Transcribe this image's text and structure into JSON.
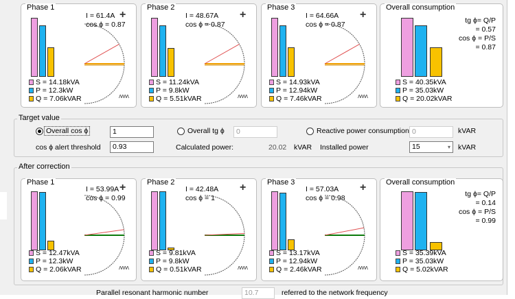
{
  "before": {
    "panels": [
      {
        "title": "Phase 1",
        "current": "I = 61.4A",
        "cos": "cos ϕ = 0.87",
        "s": "S = 14.18kVA",
        "p": "P = 12.3kW",
        "q": "Q = 7.06kVAR",
        "S": 14.18,
        "P": 12.3,
        "Q": 7.06,
        "angle_deg": 29.5
      },
      {
        "title": "Phase 2",
        "current": "I = 48.67A",
        "cos": "cos ϕ = 0.87",
        "s": "S = 11.24kVA",
        "p": "P = 9.8kW",
        "q": "Q = 5.51kVAR",
        "S": 11.24,
        "P": 9.8,
        "Q": 5.51,
        "angle_deg": 29.5
      },
      {
        "title": "Phase 3",
        "current": "I = 64.66A",
        "cos": "cos ϕ = 0.87",
        "s": "S = 14.93kVA",
        "p": "P = 12.94kW",
        "q": "Q = 7.46kVAR",
        "S": 14.93,
        "P": 12.94,
        "Q": 7.46,
        "angle_deg": 29.5
      }
    ],
    "overall": {
      "title": "Overall consumption",
      "tg_formula": "tg ϕ= Q/P",
      "tg_value": "= 0.57",
      "cos_formula": "cos ϕ = P/S",
      "cos_value": "= 0.87",
      "s": "S = 40.35kVA",
      "p": "P = 35.03kW",
      "q": "Q = 20.02kVAR",
      "S": 40.35,
      "P": 35.03,
      "Q": 20.02
    }
  },
  "target": {
    "title": "Target value",
    "overall_cos_label": "Overall cos ϕ",
    "overall_cos_value": "1",
    "overall_tg_label": "Overall tg ϕ",
    "overall_tg_value": "0",
    "reactive_label": "Reactive power consumption",
    "reactive_value": "0",
    "reactive_unit": "kVAR",
    "alert_label": "cos ϕ alert threshold",
    "alert_value": "0.93",
    "calc_label": "Calculated power:",
    "calc_value": "20.02",
    "calc_unit": "kVAR",
    "installed_label": "Installed power",
    "installed_value": "15",
    "installed_unit": "kVAR"
  },
  "after": {
    "title": "After correction",
    "panels": [
      {
        "title": "Phase 1",
        "current": "I = 53.99A",
        "cos": "cos ϕ = 0.99",
        "s": "S = 12.47kVA",
        "p": "P = 12.3kW",
        "q": "Q = 2.06kVAR",
        "S": 12.47,
        "P": 12.3,
        "Q": 2.06,
        "angle_deg": 8.1
      },
      {
        "title": "Phase 2",
        "current": "I = 42.48A",
        "cos": "cos ϕ = 1",
        "s": "S = 9.81kVA",
        "p": "P = 9.8kW",
        "q": "Q = 0.51kVAR",
        "S": 9.81,
        "P": 9.8,
        "Q": 0.51,
        "angle_deg": 2.6
      },
      {
        "title": "Phase 3",
        "current": "I = 57.03A",
        "cos": "cos ϕ = 0.98",
        "s": "S = 13.17kVA",
        "p": "P = 12.94kW",
        "q": "Q = 2.46kVAR",
        "S": 13.17,
        "P": 12.94,
        "Q": 2.46,
        "angle_deg": 10.8
      }
    ],
    "overall": {
      "title": "Overall consumption",
      "tg_formula": "tg ϕ= Q/P",
      "tg_value": "= 0.14",
      "cos_formula": "cos ϕ = P/S",
      "cos_value": "= 0.99",
      "s": "S = 35.39kVA",
      "p": "P = 35.03kW",
      "q": "Q = 5.02kVAR",
      "S": 35.39,
      "P": 35.03,
      "Q": 5.02
    }
  },
  "footer": {
    "harmonic_label": "Parallel resonant harmonic number",
    "harmonic_value": "10.7",
    "referred_label": "referred to the network frequency"
  },
  "icons": {
    "plus": "plus-icon",
    "coil": "coil-icon"
  },
  "colors": {
    "S": "#ee9fe0",
    "P": "#1fb2f0",
    "Q": "#f8c200",
    "S_vector": "#e05050",
    "P_vector": "#f0a000",
    "after_vector": "#0a7a0a"
  }
}
